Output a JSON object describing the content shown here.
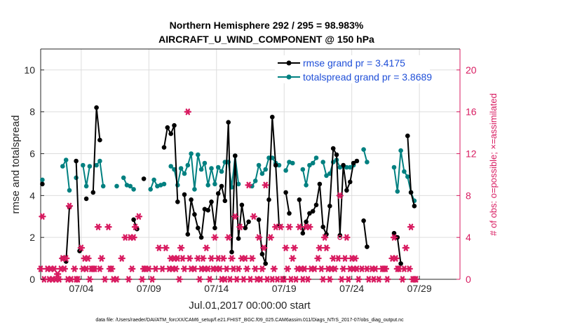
{
  "chart_data": {
    "type": "line",
    "title_line1": "Northern Hemisphere 292 / 295 = 98.983%",
    "title_line2": "AIRCRAFT_U_WIND_COMPONENT @ 150 hPa",
    "xlabel": "Jul.01,2017 00:00:00 start",
    "ylabel_left": "rmse and totalspread",
    "ylabel_right": "# of obs: o=possible; ×=assimilated",
    "footer": "data file: /Users/raeder/DAI/ATM_forcXX/CAM6_setup/f.e21.FHIST_BGC.f09_025.CAM6assim.011/Diags_NTrS_2017-07/obs_diag_output.nc",
    "xlim": [
      0,
      31
    ],
    "ylim_left": [
      0,
      11
    ],
    "ylim_right": [
      0,
      22
    ],
    "x_ticks": [
      {
        "x": 3,
        "label": "07/04"
      },
      {
        "x": 8,
        "label": "07/09"
      },
      {
        "x": 13,
        "label": "07/14"
      },
      {
        "x": 18,
        "label": "07/19"
      },
      {
        "x": 23,
        "label": "07/24"
      },
      {
        "x": 28,
        "label": "07/29"
      }
    ],
    "y_ticks_left": [
      "0",
      "2",
      "4",
      "6",
      "8",
      "10"
    ],
    "y_ticks_right": [
      "0",
      "4",
      "8",
      "12",
      "16",
      "20"
    ],
    "legend": [
      {
        "label": "rmse grand pr = 3.4175",
        "color": "#000000"
      },
      {
        "label": "totalspread grand pr = 3.8689",
        "color": "#008080"
      }
    ],
    "colors": {
      "rmse": "#000000",
      "spread": "#008080",
      "obs": "#d81b60",
      "grid": "#dddddd"
    },
    "series": [
      {
        "name": "rmse",
        "points": [
          [
            0.125,
            4.55
          ],
          null,
          [
            1.625,
            1.0
          ],
          [
            1.875,
            0.85
          ],
          [
            2.125,
            3.45
          ],
          null,
          [
            2.625,
            5.65
          ],
          [
            2.875,
            1.35
          ],
          null,
          [
            3.375,
            3.85
          ],
          null,
          [
            3.875,
            4.15
          ],
          [
            4.125,
            8.2
          ],
          [
            4.375,
            6.65
          ],
          null,
          [
            6.875,
            2.85
          ],
          [
            7.125,
            2.4
          ],
          null,
          [
            7.625,
            4.8
          ],
          null,
          [
            9.125,
            6.3
          ],
          [
            9.375,
            7.25
          ],
          [
            9.625,
            6.95
          ],
          [
            9.875,
            7.35
          ],
          [
            10.125,
            3.7
          ],
          null,
          [
            10.625,
            4.05
          ],
          [
            10.875,
            2.15
          ],
          [
            11.125,
            3.8
          ],
          [
            11.375,
            3.1
          ],
          [
            11.625,
            2.45
          ],
          [
            11.875,
            2.0
          ],
          [
            12.125,
            3.35
          ],
          [
            12.375,
            3.3
          ],
          [
            12.625,
            3.7
          ],
          [
            12.875,
            2.45
          ],
          [
            13.125,
            4.1
          ],
          [
            13.375,
            4.45
          ],
          [
            13.625,
            3.75
          ],
          [
            13.875,
            7.5
          ],
          [
            14.125,
            1.3
          ],
          [
            14.375,
            5.9
          ],
          [
            14.625,
            1.95
          ],
          [
            14.875,
            3.55
          ],
          [
            15.125,
            2.45
          ],
          [
            15.375,
            2.75
          ],
          null,
          [
            16.125,
            2.85
          ],
          [
            16.375,
            1.2
          ],
          [
            16.625,
            0.75
          ],
          [
            16.875,
            3.8
          ],
          [
            17.125,
            7.75
          ],
          [
            17.375,
            5.45
          ],
          [
            17.625,
            2.55
          ],
          null,
          [
            18.125,
            4.15
          ],
          [
            18.375,
            3.15
          ],
          null,
          [
            19.125,
            3.8
          ],
          [
            19.375,
            2.2
          ],
          [
            19.625,
            2.75
          ],
          [
            19.875,
            3.15
          ],
          [
            20.125,
            3.25
          ],
          [
            20.375,
            3.55
          ],
          [
            20.625,
            4.55
          ],
          [
            20.875,
            2.5
          ],
          [
            21.125,
            2.15
          ],
          [
            21.375,
            3.5
          ],
          [
            21.625,
            6.25
          ],
          [
            21.875,
            5.95
          ],
          [
            22.125,
            2.1
          ],
          [
            22.375,
            5.45
          ],
          [
            22.625,
            4.25
          ],
          [
            22.875,
            4.65
          ],
          [
            23.125,
            5.55
          ],
          [
            23.375,
            5.65
          ],
          null,
          [
            23.875,
            2.8
          ],
          [
            24.125,
            1.55
          ],
          null,
          [
            26.125,
            2.2
          ],
          [
            26.375,
            2.0
          ],
          [
            26.625,
            0.75
          ],
          null,
          [
            27.125,
            6.85
          ],
          [
            27.375,
            4.15
          ],
          [
            27.625,
            3.5
          ]
        ]
      },
      {
        "name": "totalspread",
        "points": [
          [
            0.125,
            4.75
          ],
          null,
          [
            1.625,
            5.4
          ],
          [
            1.875,
            5.7
          ],
          [
            2.125,
            4.25
          ],
          null,
          [
            2.625,
            4.85
          ],
          null,
          [
            3.125,
            5.45
          ],
          [
            3.375,
            4.45
          ],
          [
            3.625,
            5.4
          ],
          null,
          [
            4.125,
            5.45
          ],
          [
            4.375,
            5.65
          ],
          [
            4.625,
            4.45
          ],
          null,
          [
            5.625,
            4.45
          ],
          null,
          [
            6.125,
            4.85
          ],
          [
            6.375,
            4.5
          ],
          [
            6.625,
            4.45
          ],
          [
            6.875,
            4.3
          ],
          null,
          [
            8.125,
            4.3
          ],
          [
            8.375,
            4.75
          ],
          [
            8.625,
            4.45
          ],
          [
            8.875,
            4.5
          ],
          [
            9.125,
            4.55
          ],
          null,
          [
            9.625,
            5.4
          ],
          [
            9.875,
            5.25
          ],
          [
            10.125,
            4.5
          ],
          [
            10.375,
            5.3
          ],
          [
            10.625,
            5.05
          ],
          [
            10.875,
            5.45
          ],
          [
            11.125,
            6.0
          ],
          [
            11.375,
            4.3
          ],
          [
            11.625,
            5.95
          ],
          [
            11.875,
            5.25
          ],
          [
            12.125,
            5.55
          ],
          [
            12.375,
            4.5
          ],
          [
            12.625,
            5.3
          ],
          [
            12.875,
            4.55
          ],
          [
            13.125,
            5.35
          ],
          [
            13.375,
            5.15
          ],
          [
            13.625,
            5.6
          ],
          [
            13.875,
            5.6
          ],
          [
            14.125,
            4.4
          ],
          [
            14.375,
            5.9
          ],
          [
            14.625,
            4.55
          ],
          null,
          [
            15.625,
            4.45
          ],
          [
            15.875,
            4.7
          ],
          [
            16.125,
            5.45
          ],
          [
            16.375,
            5.05
          ],
          [
            16.625,
            5.25
          ],
          [
            16.875,
            5.8
          ],
          [
            17.125,
            5.8
          ],
          [
            17.375,
            5.55
          ],
          [
            17.625,
            5.45
          ],
          null,
          [
            18.125,
            5.2
          ],
          [
            18.375,
            5.6
          ],
          [
            18.625,
            5.55
          ],
          null,
          [
            19.375,
            5.25
          ],
          [
            19.625,
            4.5
          ],
          [
            19.875,
            5.45
          ],
          [
            20.125,
            5.55
          ],
          [
            20.375,
            5.8
          ],
          null,
          [
            20.875,
            5.6
          ],
          [
            21.125,
            4.95
          ],
          [
            21.375,
            5.05
          ],
          [
            21.625,
            5.6
          ],
          [
            21.875,
            5.7
          ],
          [
            22.125,
            5.35
          ],
          [
            22.375,
            5.4
          ],
          [
            22.625,
            5.35
          ],
          [
            22.875,
            5.35
          ],
          [
            23.125,
            5.45
          ],
          null,
          [
            23.875,
            6.2
          ],
          [
            24.125,
            5.6
          ],
          null,
          [
            26.125,
            5.35
          ],
          [
            26.375,
            4.2
          ],
          [
            26.625,
            6.15
          ],
          [
            26.875,
            5.15
          ],
          [
            27.125,
            4.9
          ],
          [
            27.375,
            4.15
          ],
          [
            27.625,
            3.75
          ]
        ]
      }
    ],
    "obs_assimilated": [
      [
        0.0,
        1.0
      ],
      [
        0.125,
        6.0
      ],
      [
        0.25,
        0.0
      ],
      [
        0.5,
        1.0
      ],
      [
        0.625,
        0.0
      ],
      [
        0.75,
        1.0
      ],
      [
        0.875,
        0.0
      ],
      [
        1.0,
        1.0
      ],
      [
        1.125,
        0.0
      ],
      [
        1.25,
        0.5
      ],
      [
        1.375,
        0.0
      ],
      [
        1.5,
        1.0
      ],
      [
        1.625,
        2.0
      ],
      [
        1.75,
        1.0
      ],
      [
        1.875,
        2.0
      ],
      [
        2.0,
        0.0
      ],
      [
        2.125,
        7.0
      ],
      [
        2.25,
        0.0
      ],
      [
        2.5,
        1.0
      ],
      [
        2.625,
        0.0
      ],
      [
        2.75,
        0.0
      ],
      [
        3.0,
        3.0
      ],
      [
        3.125,
        1.0
      ],
      [
        3.25,
        2.0
      ],
      [
        3.375,
        1.0
      ],
      [
        3.5,
        2.0
      ],
      [
        3.625,
        0.0
      ],
      [
        3.75,
        1.0
      ],
      [
        3.875,
        1.0
      ],
      [
        4.0,
        1.0
      ],
      [
        4.25,
        5.0
      ],
      [
        4.375,
        1.0
      ],
      [
        4.5,
        2.0
      ],
      [
        4.75,
        0.0
      ],
      [
        5.0,
        5.0
      ],
      [
        5.125,
        1.0
      ],
      [
        5.25,
        1.0
      ],
      [
        5.375,
        0.0
      ],
      [
        5.625,
        0.0
      ],
      [
        6.0,
        2.0
      ],
      [
        6.25,
        4.0
      ],
      [
        6.5,
        0.0
      ],
      [
        6.625,
        4.0
      ],
      [
        6.75,
        1.0
      ],
      [
        6.875,
        4.0
      ],
      [
        7.0,
        5.0
      ],
      [
        7.25,
        6.0
      ],
      [
        7.5,
        0.0
      ],
      [
        7.625,
        1.0
      ],
      [
        7.75,
        1.0
      ],
      [
        8.0,
        1.0
      ],
      [
        8.25,
        0.0
      ],
      [
        8.5,
        1.0
      ],
      [
        8.75,
        3.0
      ],
      [
        9.0,
        1.0
      ],
      [
        9.25,
        3.0
      ],
      [
        9.5,
        1.0
      ],
      [
        9.625,
        2.0
      ],
      [
        9.75,
        1.0
      ],
      [
        9.875,
        2.0
      ],
      [
        10.0,
        1.0
      ],
      [
        10.125,
        2.0
      ],
      [
        10.25,
        0.0
      ],
      [
        10.375,
        3.0
      ],
      [
        10.5,
        2.0
      ],
      [
        10.625,
        1.0
      ],
      [
        10.875,
        16.0
      ],
      [
        11.0,
        2.0
      ],
      [
        11.125,
        1.0
      ],
      [
        11.375,
        1.0
      ],
      [
        11.625,
        2.0
      ],
      [
        11.75,
        0.0
      ],
      [
        11.875,
        1.0
      ],
      [
        12.0,
        2.0
      ],
      [
        12.125,
        1.0
      ],
      [
        12.25,
        3.0
      ],
      [
        12.375,
        1.0
      ],
      [
        12.5,
        0.0
      ],
      [
        12.625,
        2.0
      ],
      [
        12.75,
        1.0
      ],
      [
        12.875,
        4.0
      ],
      [
        13.0,
        1.0
      ],
      [
        13.125,
        2.0
      ],
      [
        13.25,
        1.0
      ],
      [
        13.375,
        0.0
      ],
      [
        13.5,
        2.0
      ],
      [
        13.625,
        0.0
      ],
      [
        13.75,
        1.0
      ],
      [
        13.875,
        4.0
      ],
      [
        14.0,
        0.0
      ],
      [
        14.125,
        2.0
      ],
      [
        14.25,
        1.0
      ],
      [
        14.375,
        6.0
      ],
      [
        14.5,
        0.0
      ],
      [
        14.625,
        1.0
      ],
      [
        14.75,
        5.0
      ],
      [
        14.875,
        2.0
      ],
      [
        15.0,
        0.0
      ],
      [
        15.125,
        2.0
      ],
      [
        15.25,
        1.0
      ],
      [
        15.375,
        9.0
      ],
      [
        15.5,
        0.0
      ],
      [
        15.625,
        2.0
      ],
      [
        15.75,
        6.0
      ],
      [
        15.875,
        1.0
      ],
      [
        16.0,
        0.0
      ],
      [
        16.125,
        4.0
      ],
      [
        16.25,
        0.0
      ],
      [
        16.375,
        1.0
      ],
      [
        16.5,
        3.0
      ],
      [
        16.625,
        9.0
      ],
      [
        16.75,
        0.0
      ],
      [
        17.0,
        4.0
      ],
      [
        17.125,
        0.0
      ],
      [
        17.25,
        1.0
      ],
      [
        17.375,
        5.0
      ],
      [
        17.5,
        0.0
      ],
      [
        17.75,
        5.0
      ],
      [
        17.875,
        0.0
      ],
      [
        18.0,
        0.0
      ],
      [
        18.125,
        3.0
      ],
      [
        18.25,
        1.0
      ],
      [
        18.375,
        5.0
      ],
      [
        18.5,
        0.0
      ],
      [
        18.625,
        2.0
      ],
      [
        18.75,
        3.0
      ],
      [
        18.875,
        0.0
      ],
      [
        19.0,
        1.0
      ],
      [
        19.125,
        5.0
      ],
      [
        19.25,
        1.0
      ],
      [
        19.375,
        0.0
      ],
      [
        19.5,
        1.0
      ],
      [
        19.625,
        5.0
      ],
      [
        19.75,
        0.0
      ],
      [
        19.875,
        5.0
      ],
      [
        20.0,
        1.0
      ],
      [
        20.25,
        1.0
      ],
      [
        20.5,
        2.0
      ],
      [
        20.625,
        3.0
      ],
      [
        20.75,
        1.0
      ],
      [
        20.875,
        0.0
      ],
      [
        21.0,
        4.0
      ],
      [
        21.125,
        3.0
      ],
      [
        21.25,
        1.0
      ],
      [
        21.375,
        0.0
      ],
      [
        21.5,
        1.0
      ],
      [
        21.625,
        2.0
      ],
      [
        21.75,
        1.0
      ],
      [
        22.0,
        2.0
      ],
      [
        22.125,
        8.0
      ],
      [
        22.25,
        0.0
      ],
      [
        22.375,
        1.0
      ],
      [
        22.5,
        2.0
      ],
      [
        22.625,
        4.0
      ],
      [
        22.75,
        0.0
      ],
      [
        22.875,
        1.0
      ],
      [
        23.0,
        2.0
      ],
      [
        23.125,
        1.0
      ],
      [
        23.25,
        2.0
      ],
      [
        23.375,
        1.0
      ],
      [
        23.5,
        0.0
      ],
      [
        23.75,
        1.0
      ],
      [
        24.125,
        1.0
      ],
      [
        24.25,
        0.0
      ],
      [
        24.5,
        1.0
      ],
      [
        24.625,
        0.0
      ],
      [
        24.75,
        1.0
      ],
      [
        25.0,
        0.0
      ],
      [
        25.25,
        1.0
      ],
      [
        25.375,
        1.0
      ],
      [
        25.5,
        1.0
      ],
      [
        25.625,
        0.0
      ],
      [
        26.0,
        2.0
      ],
      [
        26.125,
        4.0
      ],
      [
        26.25,
        2.0
      ],
      [
        26.375,
        1.0
      ],
      [
        26.5,
        1.0
      ],
      [
        26.75,
        0.0
      ],
      [
        26.875,
        1.0
      ],
      [
        27.0,
        3.0
      ],
      [
        27.25,
        1.0
      ],
      [
        27.375,
        5.0
      ],
      [
        27.5,
        0.0
      ],
      [
        27.625,
        0.0
      ],
      [
        27.75,
        0.0
      ]
    ],
    "obs_possible": [
      [
        22.125,
        4.0
      ]
    ]
  }
}
